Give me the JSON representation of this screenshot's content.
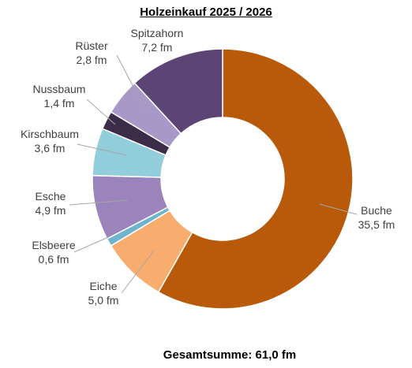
{
  "chart_data": {
    "type": "pie",
    "title": "Holzeinkauf 2025 / 2026",
    "total_text": "Gesamtsumme: 61,0 fm",
    "slices": [
      {
        "name": "Buche",
        "value": 35.5,
        "value_label": "35,5 fm",
        "color": "#B85A0A"
      },
      {
        "name": "Eiche",
        "value": 5.0,
        "value_label": "5,0 fm",
        "color": "#F8AC6E"
      },
      {
        "name": "Elsbeere",
        "value": 0.6,
        "value_label": "0,6 fm",
        "color": "#6FB4CE"
      },
      {
        "name": "Esche",
        "value": 4.9,
        "value_label": "4,9 fm",
        "color": "#9A84BB"
      },
      {
        "name": "Kirschbaum",
        "value": 3.6,
        "value_label": "3,6 fm",
        "color": "#92CDDC"
      },
      {
        "name": "Nussbaum",
        "value": 1.4,
        "value_label": "1,4 fm",
        "color": "#3B2C4A"
      },
      {
        "name": "Rüster",
        "value": 2.8,
        "value_label": "2,8 fm",
        "color": "#A898C8"
      },
      {
        "name": "Spitzahorn",
        "value": 7.2,
        "value_label": "7,2 fm",
        "color": "#5C4475"
      }
    ]
  }
}
